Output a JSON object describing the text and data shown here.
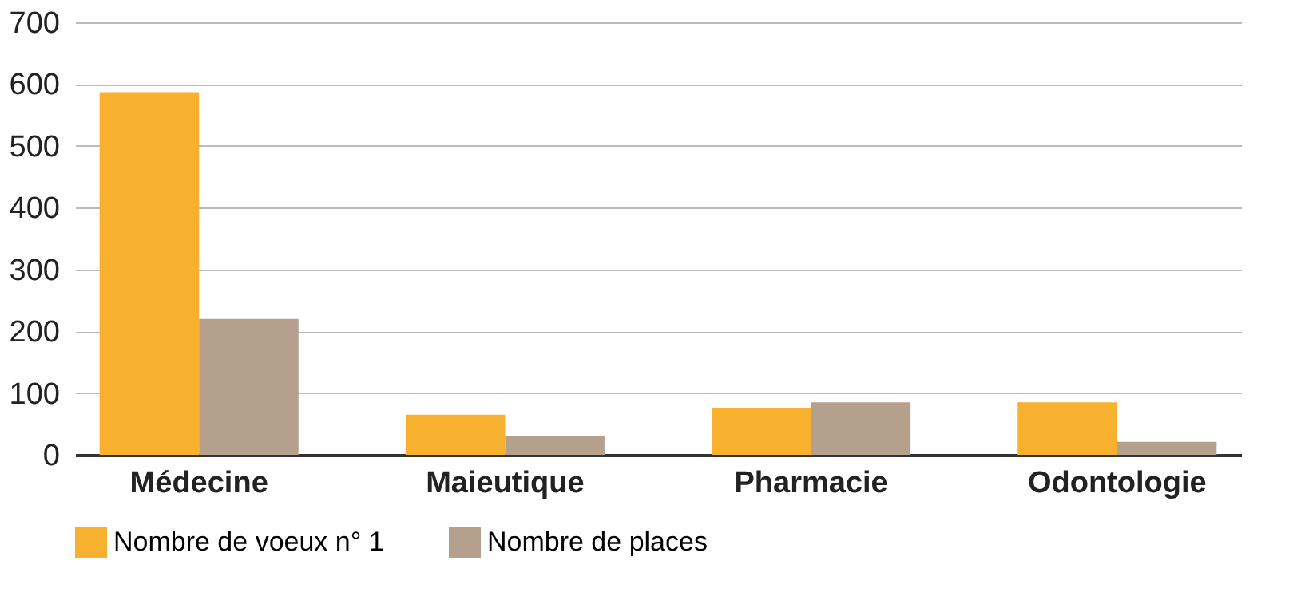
{
  "chart_data": {
    "type": "bar",
    "categories": [
      "Médecine",
      "Maieutique",
      "Pharmacie",
      "Odontologie"
    ],
    "series": [
      {
        "name": "Nombre de voeux n° 1",
        "color": "#f7b12e",
        "values": [
          587,
          65,
          75,
          85
        ]
      },
      {
        "name": "Nombre de places",
        "color": "#b5a08e",
        "values": [
          220,
          31,
          85,
          21
        ]
      }
    ],
    "ylim": [
      0,
      700
    ],
    "yticks": [
      0,
      100,
      200,
      300,
      400,
      500,
      600,
      700
    ],
    "grid": "y",
    "legend": "bottom"
  }
}
